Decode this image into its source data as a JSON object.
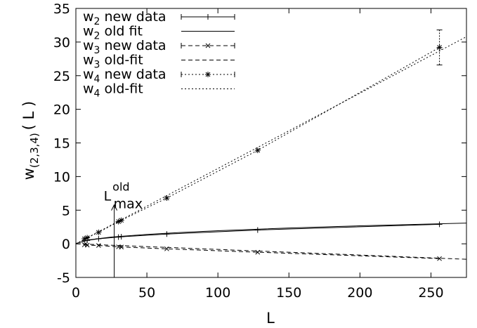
{
  "chart_data": {
    "type": "line",
    "title": "",
    "xlabel": "L",
    "ylabel": "w(2,3,4)( L )",
    "ylabel_parts": {
      "base": "w",
      "sub": "(2,3,4)",
      "rest": "( L )"
    },
    "xlim": [
      0,
      275
    ],
    "ylim": [
      -5,
      35
    ],
    "xticks": [
      0,
      50,
      100,
      150,
      200,
      250
    ],
    "yticks": [
      -5,
      0,
      5,
      10,
      15,
      20,
      25,
      30,
      35
    ],
    "grid": false,
    "legend_position": "top-left",
    "series": [
      {
        "name": "w2 new data",
        "label": {
          "base": "w",
          "sub": "2",
          "rest": "new data"
        },
        "style": "points-plus",
        "dash": "solid",
        "x": [
          6,
          8,
          16,
          30,
          32,
          64,
          128,
          256
        ],
        "y": [
          0.45,
          0.5,
          0.75,
          1.0,
          1.05,
          1.45,
          2.05,
          2.9
        ],
        "yerr": [
          0,
          0,
          0,
          0,
          0,
          0,
          0,
          0
        ]
      },
      {
        "name": "w2 old fit",
        "label": {
          "base": "w",
          "sub": "2",
          "rest": "old fit"
        },
        "style": "line",
        "dash": "solid",
        "x": [
          0,
          10,
          25,
          50,
          75,
          100,
          150,
          200,
          275
        ],
        "y": [
          0.05,
          0.62,
          1.0,
          1.4,
          1.7,
          1.95,
          2.35,
          2.68,
          3.08
        ]
      },
      {
        "name": "w3 new data",
        "label": {
          "base": "w",
          "sub": "3",
          "rest": "new data"
        },
        "style": "points-x",
        "dash": "dashed",
        "x": [
          6,
          8,
          16,
          30,
          32,
          64,
          128,
          256
        ],
        "y": [
          -0.15,
          -0.2,
          -0.25,
          -0.45,
          -0.48,
          -0.75,
          -1.25,
          -2.2
        ],
        "yerr": [
          0,
          0,
          0,
          0,
          0,
          0,
          0,
          0
        ]
      },
      {
        "name": "w3 old-fit",
        "label": {
          "base": "w",
          "sub": "3",
          "rest": "old-fit"
        },
        "style": "line",
        "dash": "dashed",
        "x": [
          0,
          275
        ],
        "y": [
          0.0,
          -2.3
        ]
      },
      {
        "name": "w4 new data",
        "label": {
          "base": "w",
          "sub": "4",
          "rest": "new data"
        },
        "style": "points-star",
        "dash": "dotted",
        "x": [
          6,
          8,
          16,
          30,
          32,
          64,
          128,
          256
        ],
        "y": [
          0.75,
          0.9,
          1.7,
          3.3,
          3.5,
          6.8,
          13.9,
          29.2
        ],
        "yerr": [
          0,
          0,
          0,
          0,
          0,
          0,
          0.3,
          2.6
        ]
      },
      {
        "name": "w4 old-fit",
        "label": {
          "base": "w",
          "sub": "4",
          "rest": "old-fit"
        },
        "style": "line",
        "dash": "dotted",
        "x": [
          0,
          275
        ],
        "y": [
          0.0,
          30.8
        ]
      }
    ],
    "annotations": [
      {
        "text": "L",
        "sup": "old",
        "sub": "max",
        "x": 27,
        "y_from": -5,
        "y_to": 5.8
      }
    ]
  }
}
